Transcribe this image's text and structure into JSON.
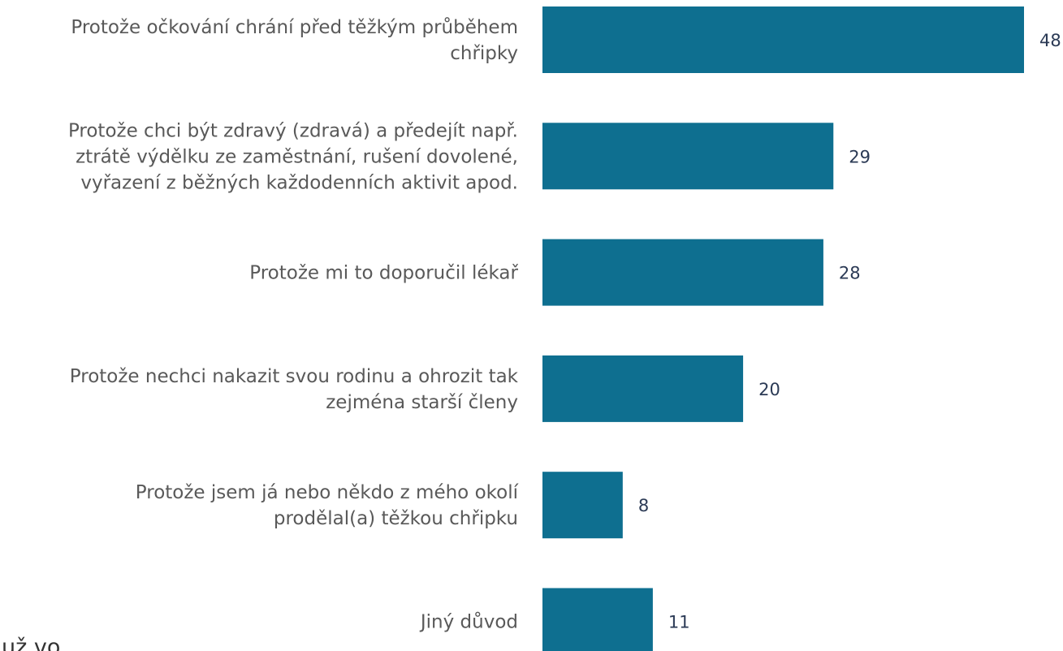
{
  "chart_data": {
    "type": "barh",
    "categories": [
      "Protože očkování chrání před těžkým průběhem\nchřipky",
      "Protože chci být zdravý (zdravá) a předejít např.\nztrátě výdělku ze zaměstnání, rušení dovolené,\nvyřazení z běžných každodenních aktivit apod.",
      "Protože mi to doporučil lékař",
      "Protože nechci nakazit svou rodinu a ohrozit tak\nzejména starší členy",
      "Protože jsem já nebo někdo z mého okolí\nprodělal(a) těžkou chřipku",
      "Jiný důvod"
    ],
    "values": [
      48,
      29,
      28,
      20,
      8,
      11
    ],
    "color": "#0e6f90",
    "xlim": [
      0,
      48
    ],
    "annotation": "už vo"
  }
}
